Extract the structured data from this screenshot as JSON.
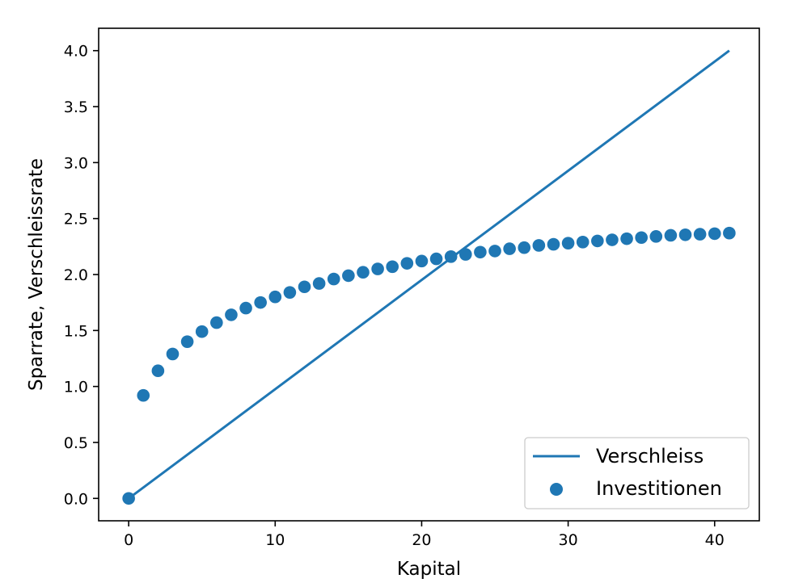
{
  "chart_data": {
    "type": "scatter",
    "title": "",
    "xlabel": "Kapital",
    "ylabel": "Sparrate, Verschleissrate",
    "xlim": [
      -2.05,
      43.05
    ],
    "ylim": [
      -0.2,
      4.2
    ],
    "xticks": [
      0,
      10,
      20,
      30,
      40
    ],
    "yticks": [
      0.0,
      0.5,
      1.0,
      1.5,
      2.0,
      2.5,
      3.0,
      3.5,
      4.0
    ],
    "xtick_labels": [
      "0",
      "10",
      "20",
      "30",
      "40"
    ],
    "ytick_labels": [
      "0.0",
      "0.5",
      "1.0",
      "1.5",
      "2.0",
      "2.5",
      "3.0",
      "3.5",
      "4.0"
    ],
    "grid": false,
    "legend_position": "lower-right",
    "color": "#1f77b4",
    "series": [
      {
        "name": "Verschleiss",
        "kind": "line",
        "x": [
          0,
          41
        ],
        "y": [
          0.0,
          4.0
        ]
      },
      {
        "name": "Investitionen",
        "kind": "scatter",
        "x": [
          0,
          1,
          2,
          3,
          4,
          5,
          6,
          7,
          8,
          9,
          10,
          11,
          12,
          13,
          14,
          15,
          16,
          17,
          18,
          19,
          20,
          21,
          22,
          23,
          24,
          25,
          26,
          27,
          28,
          29,
          30,
          31,
          32,
          33,
          34,
          35,
          36,
          37,
          38,
          39,
          40,
          41
        ],
        "y": [
          0.0,
          0.92,
          1.14,
          1.29,
          1.4,
          1.49,
          1.57,
          1.64,
          1.7,
          1.75,
          1.8,
          1.84,
          1.89,
          1.92,
          1.96,
          1.99,
          2.02,
          2.05,
          2.07,
          2.1,
          2.12,
          2.14,
          2.16,
          2.18,
          2.2,
          2.21,
          2.23,
          2.24,
          2.26,
          2.27,
          2.28,
          2.29,
          2.3,
          2.31,
          2.32,
          2.33,
          2.34,
          2.35,
          2.355,
          2.36,
          2.365,
          2.37
        ]
      }
    ]
  }
}
